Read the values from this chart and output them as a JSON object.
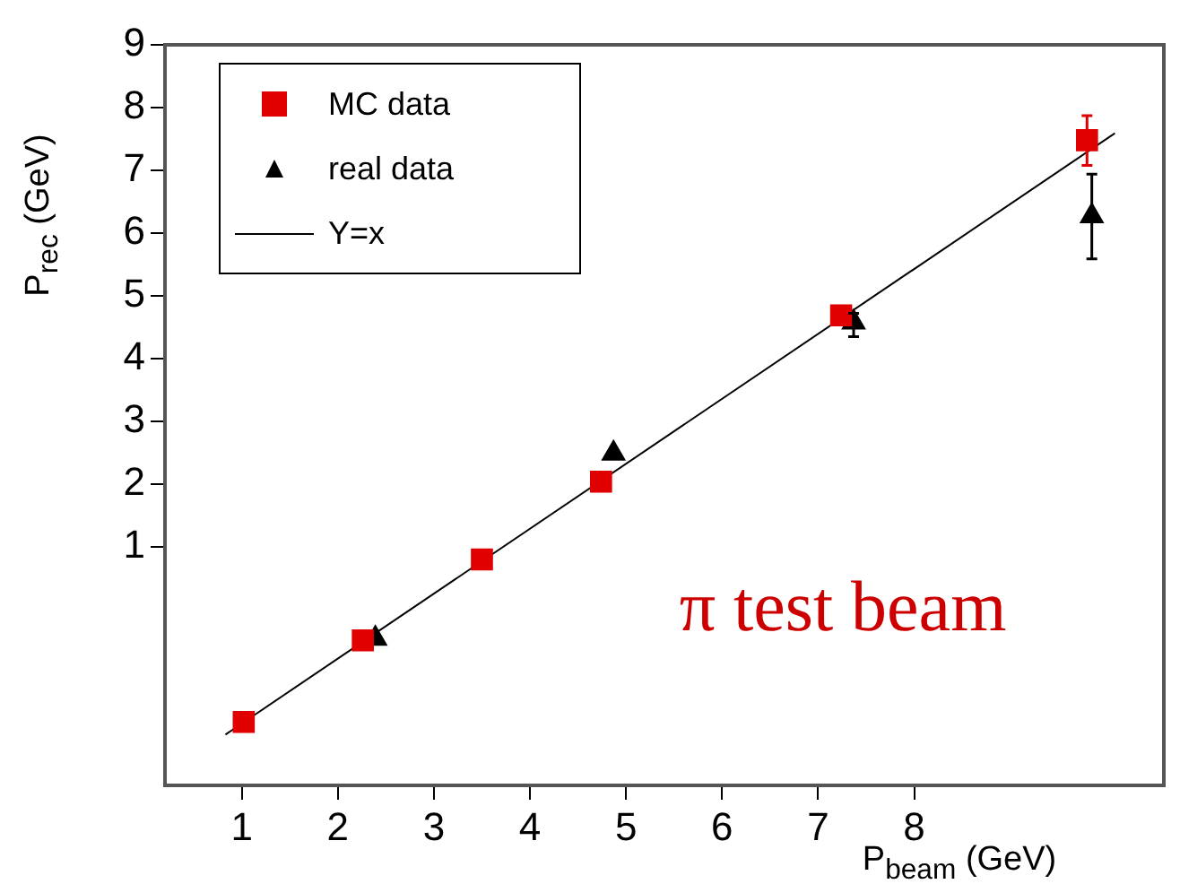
{
  "chart_data": {
    "type": "scatter",
    "xlabel": "P$_{beam}$ (GeV)",
    "ylabel": "P$_{rec}$ (GeV)",
    "xlim": [
      0.2,
      10.6
    ],
    "ylim": [
      -2.8,
      9
    ],
    "xticks": [
      1,
      2,
      3,
      4,
      5,
      6,
      7,
      8
    ],
    "yticks": [
      1,
      2,
      3,
      4,
      5,
      6,
      7,
      8,
      9
    ],
    "grid": false,
    "legend": "top left",
    "series": [
      {
        "name": "MC data",
        "color": "#e00000",
        "marker": "square",
        "x": [
          1.02,
          2.26,
          3.5,
          4.74,
          7.24,
          9.8
        ],
        "values": [
          -1.79,
          -0.49,
          0.8,
          2.04,
          4.69,
          7.48
        ],
        "errors": [
          null,
          null,
          null,
          null,
          null,
          [
            7.08,
            7.87
          ]
        ]
      },
      {
        "name": "real data",
        "color": "#000000",
        "marker": "triangle",
        "x": [
          2.39,
          4.87,
          7.37,
          9.85
        ],
        "values": [
          -0.46,
          2.49,
          4.58,
          6.27
        ],
        "errors": [
          null,
          null,
          [
            4.35,
            4.72
          ],
          [
            5.59,
            6.94
          ]
        ]
      },
      {
        "name": "Y=x",
        "type": "line",
        "color": "#000000",
        "marker": "none",
        "line_style": "solid",
        "x": [
          0.83,
          10.09
        ],
        "values": [
          -1.99,
          7.59
        ]
      }
    ],
    "annotations": [
      "π test beam"
    ]
  }
}
